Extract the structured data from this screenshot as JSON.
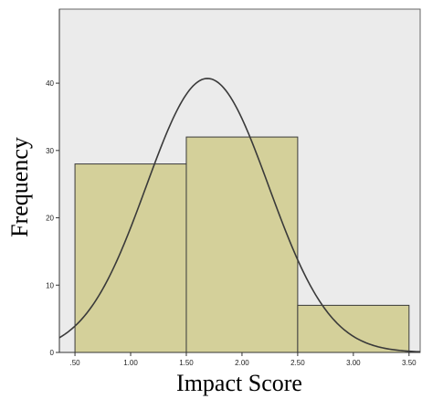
{
  "chart_data": {
    "type": "bar",
    "subtype": "histogram",
    "bins": [
      {
        "from": 0.5,
        "to": 1.5,
        "value": 28
      },
      {
        "from": 1.5,
        "to": 2.5,
        "value": 32
      },
      {
        "from": 2.5,
        "to": 3.5,
        "value": 7
      }
    ],
    "xlabel": "Impact Score",
    "ylabel": "Frequency",
    "xlim": [
      0.36,
      3.6
    ],
    "ylim": [
      0,
      51
    ],
    "x_ticks": [
      ".50",
      "1.00",
      "1.50",
      "2.00",
      "2.50",
      "3.00",
      "3.50"
    ],
    "y_ticks": [
      "0",
      "10",
      "20",
      "30",
      "40"
    ],
    "normal_curve": {
      "mean": 1.69,
      "std_dev": 0.55,
      "peak": 40.7
    },
    "grid": false,
    "colors": {
      "plot_background": "#ebebeb",
      "bar_fill": "#d4d09a",
      "bar_stroke": "#3a3a3a",
      "curve": "#3a3a3a"
    }
  }
}
